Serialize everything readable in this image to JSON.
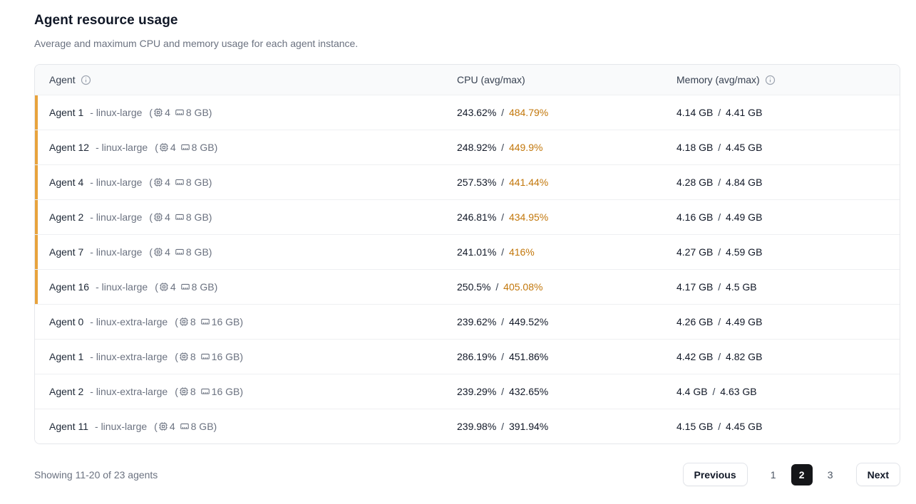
{
  "page": {
    "title": "Agent resource usage",
    "subtitle": "Average and maximum CPU and memory usage for each agent instance."
  },
  "colors": {
    "amber_bar": "#e8a33d",
    "cpu_alert_text": "#c2770b"
  },
  "table": {
    "columns": {
      "agent": "Agent",
      "cpu": "CPU (avg/max)",
      "memory": "Memory (avg/max)"
    },
    "rows": [
      {
        "name": "Agent 1",
        "type": "- linux-large",
        "cpus": "4",
        "ram": "8 GB",
        "cpu_avg": "243.62%",
        "cpu_max": "484.79%",
        "cpu_alert": true,
        "mem_avg": "4.14 GB",
        "mem_max": "4.41 GB",
        "flagged": true
      },
      {
        "name": "Agent 12",
        "type": "- linux-large",
        "cpus": "4",
        "ram": "8 GB",
        "cpu_avg": "248.92%",
        "cpu_max": "449.9%",
        "cpu_alert": true,
        "mem_avg": "4.18 GB",
        "mem_max": "4.45 GB",
        "flagged": true
      },
      {
        "name": "Agent 4",
        "type": "- linux-large",
        "cpus": "4",
        "ram": "8 GB",
        "cpu_avg": "257.53%",
        "cpu_max": "441.44%",
        "cpu_alert": true,
        "mem_avg": "4.28 GB",
        "mem_max": "4.84 GB",
        "flagged": true
      },
      {
        "name": "Agent 2",
        "type": "- linux-large",
        "cpus": "4",
        "ram": "8 GB",
        "cpu_avg": "246.81%",
        "cpu_max": "434.95%",
        "cpu_alert": true,
        "mem_avg": "4.16 GB",
        "mem_max": "4.49 GB",
        "flagged": true
      },
      {
        "name": "Agent 7",
        "type": "- linux-large",
        "cpus": "4",
        "ram": "8 GB",
        "cpu_avg": "241.01%",
        "cpu_max": "416%",
        "cpu_alert": true,
        "mem_avg": "4.27 GB",
        "mem_max": "4.59 GB",
        "flagged": true
      },
      {
        "name": "Agent 16",
        "type": "- linux-large",
        "cpus": "4",
        "ram": "8 GB",
        "cpu_avg": "250.5%",
        "cpu_max": "405.08%",
        "cpu_alert": true,
        "mem_avg": "4.17 GB",
        "mem_max": "4.5 GB",
        "flagged": true
      },
      {
        "name": "Agent 0",
        "type": "- linux-extra-large",
        "cpus": "8",
        "ram": "16 GB",
        "cpu_avg": "239.62%",
        "cpu_max": "449.52%",
        "cpu_alert": false,
        "mem_avg": "4.26 GB",
        "mem_max": "4.49 GB",
        "flagged": false
      },
      {
        "name": "Agent 1",
        "type": "- linux-extra-large",
        "cpus": "8",
        "ram": "16 GB",
        "cpu_avg": "286.19%",
        "cpu_max": "451.86%",
        "cpu_alert": false,
        "mem_avg": "4.42 GB",
        "mem_max": "4.82 GB",
        "flagged": false
      },
      {
        "name": "Agent 2",
        "type": "- linux-extra-large",
        "cpus": "8",
        "ram": "16 GB",
        "cpu_avg": "239.29%",
        "cpu_max": "432.65%",
        "cpu_alert": false,
        "mem_avg": "4.4 GB",
        "mem_max": "4.63 GB",
        "flagged": false
      },
      {
        "name": "Agent 11",
        "type": "- linux-large",
        "cpus": "4",
        "ram": "8 GB",
        "cpu_avg": "239.98%",
        "cpu_max": "391.94%",
        "cpu_alert": false,
        "mem_avg": "4.15 GB",
        "mem_max": "4.45 GB",
        "flagged": false
      }
    ]
  },
  "footer": {
    "showing": "Showing 11-20 of 23 agents",
    "previous_label": "Previous",
    "pages": [
      "1",
      "2",
      "3"
    ],
    "active_page": "2",
    "next_label": "Next"
  }
}
